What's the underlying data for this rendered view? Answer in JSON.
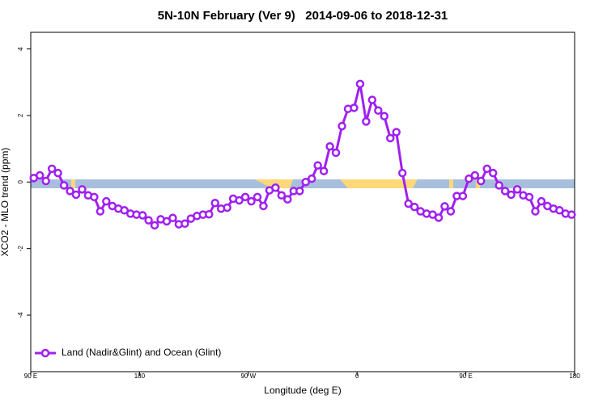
{
  "chart_data": {
    "type": "line",
    "title": "5N-10N February (Ver 9)   2014-09-06 to 2018-12-31",
    "xlabel": "Longitude (deg E)",
    "ylabel": "XCO2 - MLO trend (ppm)",
    "x": [
      92.5,
      97.5,
      102.5,
      107.5,
      112.5,
      117.5,
      122.5,
      127.5,
      132.5,
      137.5,
      142.5,
      147.5,
      152.5,
      157.5,
      162.5,
      167.5,
      172.5,
      177.5,
      182.5,
      187.5,
      192.5,
      197.5,
      202.5,
      207.5,
      212.5,
      217.5,
      222.5,
      227.5,
      232.5,
      237.5,
      242.5,
      247.5,
      252.5,
      257.5,
      262.5,
      267.5,
      272.5,
      277.5,
      282.5,
      287.5,
      292.5,
      297.5,
      302.5,
      307.5,
      312.5,
      317.5,
      322.5,
      327.5,
      332.5,
      337.5,
      342.5,
      347.5,
      352.5,
      357.5,
      362.5,
      367.5,
      372.5,
      377.5,
      382.5,
      387.5,
      392.5,
      397.5,
      402.5,
      407.5,
      412.5,
      417.5,
      422.5,
      427.5,
      432.5,
      437.5,
      442.5,
      447.5,
      452.5,
      457.5,
      462.5,
      467.5,
      472.5,
      477.5,
      482.5,
      487.5,
      492.5,
      497.5,
      502.5,
      507.5,
      512.5,
      517.5,
      522.5,
      527.5,
      532.5,
      537.5
    ],
    "series": [
      {
        "name": "Land (Nadir&Glint) and Ocean (Glint)",
        "color": "#a020f0",
        "values": [
          0.12,
          0.2,
          0.03,
          0.4,
          0.27,
          -0.1,
          -0.27,
          -0.38,
          -0.22,
          -0.4,
          -0.45,
          -0.88,
          -0.58,
          -0.72,
          -0.8,
          -0.85,
          -0.95,
          -0.98,
          -1.0,
          -1.15,
          -1.3,
          -1.12,
          -1.18,
          -1.08,
          -1.27,
          -1.25,
          -1.1,
          -1.02,
          -0.98,
          -0.97,
          -0.63,
          -0.8,
          -0.77,
          -0.5,
          -0.55,
          -0.45,
          -0.58,
          -0.45,
          -0.72,
          -0.25,
          -0.17,
          -0.4,
          -0.52,
          -0.27,
          -0.27,
          0.0,
          0.1,
          0.5,
          0.33,
          1.07,
          0.88,
          1.68,
          2.2,
          2.23,
          2.95,
          1.82,
          2.47,
          2.15,
          1.98,
          1.32,
          1.5,
          0.27,
          -0.65,
          -0.75,
          -0.88,
          -0.95,
          -0.98,
          -1.07,
          -0.73,
          -0.88,
          -0.42,
          -0.42,
          0.1,
          0.2,
          0.03,
          0.4,
          0.27,
          -0.1,
          -0.27,
          -0.38,
          -0.22,
          -0.4,
          -0.45,
          -0.88,
          -0.58,
          -0.72,
          -0.8,
          -0.85,
          -0.95,
          -0.98
        ]
      }
    ],
    "xlim": [
      90,
      540
    ],
    "xticks": [
      {
        "value": 90,
        "label": "90 E"
      },
      180,
      {
        "value": 270,
        "label": "90 W"
      },
      {
        "value": 360,
        "label": "0"
      },
      {
        "value": 450,
        "label": "90 E"
      },
      {
        "value": 540,
        "label": "180"
      }
    ],
    "ylim": [
      -5.7,
      4.5
    ],
    "yticks": [
      -4,
      -2,
      0,
      2,
      4
    ],
    "legend": "bottomleft"
  }
}
